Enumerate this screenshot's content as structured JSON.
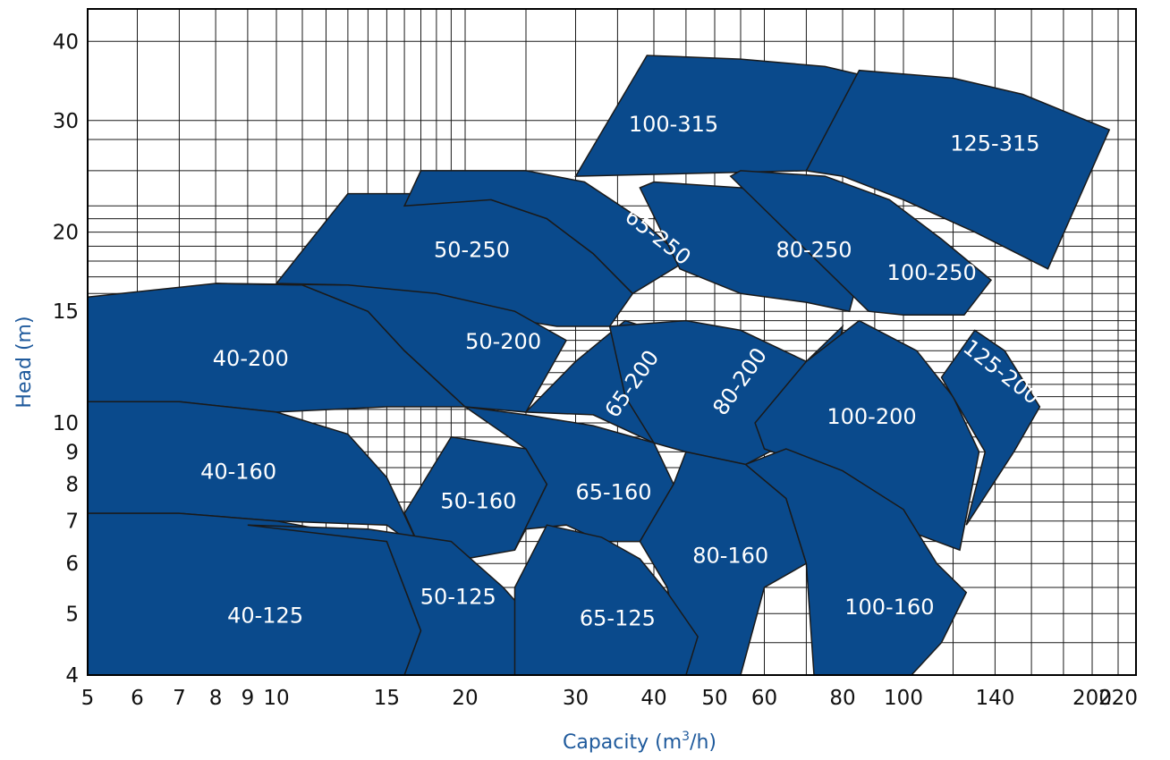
{
  "chart_data": {
    "type": "area",
    "x_scale": "log",
    "y_scale": "log",
    "xlim": [
      5,
      220
    ],
    "ylim": [
      4,
      45
    ],
    "grid": true,
    "xlabel_text": "Capacity (m",
    "xlabel_sup": "3",
    "xlabel_tail": "/h)",
    "ylabel": "Head (m)",
    "x_ticks": [
      5,
      6,
      7,
      8,
      9,
      10,
      15,
      20,
      30,
      40,
      50,
      60,
      80,
      100,
      140,
      200,
      220
    ],
    "y_ticks": [
      4,
      5,
      6,
      7,
      8,
      9,
      10,
      15,
      20,
      30,
      40
    ],
    "x_grid": [
      5,
      6,
      7,
      8,
      9,
      10,
      11,
      12,
      13,
      14,
      15,
      16,
      17,
      18,
      19,
      20,
      25,
      30,
      35,
      40,
      45,
      50,
      55,
      60,
      70,
      80,
      90,
      100,
      120,
      140,
      160,
      180,
      200,
      220
    ],
    "y_grid": [
      4,
      4.5,
      5,
      5.5,
      6,
      6.5,
      7,
      7.5,
      8,
      8.5,
      9,
      9.5,
      10,
      10.5,
      11,
      11.5,
      12,
      12.5,
      13,
      13.5,
      14,
      14.5,
      15,
      16,
      17,
      18,
      19,
      20,
      21,
      22,
      25,
      28,
      30,
      40
    ],
    "colors": {
      "region_fill": "#0a4a8c",
      "outline": "#1a1a1a",
      "label": "#ffffff",
      "axis_title": "#1f5a9c"
    },
    "regions": [
      {
        "name": "100-315",
        "label_at": [
          43,
          29.5
        ],
        "rotate": 0,
        "points": [
          [
            30,
            24.5
          ],
          [
            39,
            38
          ],
          [
            55,
            37.5
          ],
          [
            75,
            36.5
          ],
          [
            90,
            35
          ],
          [
            70,
            25
          ]
        ]
      },
      {
        "name": "125-315",
        "label_at": [
          140,
          27.5
        ],
        "rotate": 0,
        "points": [
          [
            70,
            25
          ],
          [
            85,
            36
          ],
          [
            120,
            35
          ],
          [
            155,
            33
          ],
          [
            213,
            29
          ],
          [
            170,
            17.5
          ],
          [
            130,
            20
          ],
          [
            100,
            22.5
          ],
          [
            80,
            24.5
          ]
        ]
      },
      {
        "name": "50-250",
        "label_at": [
          20.5,
          18.7
        ],
        "rotate": 0,
        "points": [
          [
            10,
            16.6
          ],
          [
            13,
            23
          ],
          [
            17,
            23
          ],
          [
            22,
            22.5
          ],
          [
            27,
            21
          ],
          [
            32,
            18.5
          ],
          [
            37,
            16
          ],
          [
            34,
            14.2
          ],
          [
            28,
            14.2
          ],
          [
            20,
            15
          ],
          [
            13,
            16.5
          ]
        ]
      },
      {
        "name": "65-250",
        "label_at": [
          40.5,
          19.6
        ],
        "rotate": 38,
        "points": [
          [
            16,
            22
          ],
          [
            17,
            25
          ],
          [
            25,
            25
          ],
          [
            31,
            24
          ],
          [
            38,
            21
          ],
          [
            45,
            18
          ],
          [
            37,
            16
          ],
          [
            32,
            18.5
          ],
          [
            27,
            21
          ],
          [
            22,
            22.5
          ]
        ]
      },
      {
        "name": "80-250",
        "label_at": [
          72,
          18.7
        ],
        "rotate": 0,
        "points": [
          [
            38,
            23.5
          ],
          [
            40,
            24
          ],
          [
            55,
            23.5
          ],
          [
            70,
            22
          ],
          [
            88,
            19.5
          ],
          [
            82,
            15
          ],
          [
            70,
            15.5
          ],
          [
            55,
            16
          ],
          [
            44,
            17.5
          ]
        ]
      },
      {
        "name": "100-250",
        "label_at": [
          111,
          17.2
        ],
        "rotate": 0,
        "points": [
          [
            53,
            24.5
          ],
          [
            55,
            25
          ],
          [
            75,
            24.5
          ],
          [
            95,
            22.5
          ],
          [
            115,
            19.5
          ],
          [
            138,
            16.8
          ],
          [
            125,
            14.8
          ],
          [
            100,
            14.8
          ],
          [
            88,
            15
          ]
        ]
      },
      {
        "name": "40-200",
        "label_at": [
          9.1,
          12.6
        ],
        "rotate": 0,
        "points": [
          [
            5,
            15.8
          ],
          [
            8,
            16.6
          ],
          [
            11,
            16.5
          ],
          [
            14,
            15
          ],
          [
            16,
            13
          ],
          [
            20,
            10.6
          ],
          [
            15,
            10.6
          ],
          [
            10,
            10.4
          ],
          [
            7,
            10.8
          ],
          [
            5,
            10.8
          ]
        ]
      },
      {
        "name": "50-200",
        "label_at": [
          23,
          13.4
        ],
        "rotate": 0,
        "points": [
          [
            8,
            16.6
          ],
          [
            13,
            16.5
          ],
          [
            18,
            16
          ],
          [
            24,
            15
          ],
          [
            29,
            13.5
          ],
          [
            25,
            10.4
          ],
          [
            20,
            10.6
          ],
          [
            16,
            13
          ],
          [
            14,
            15
          ],
          [
            11,
            16.5
          ]
        ]
      },
      {
        "name": "65-200",
        "label_at": [
          37,
          11.5
        ],
        "rotate": -55,
        "points": [
          [
            25,
            10.4
          ],
          [
            30,
            12.5
          ],
          [
            36,
            14.5
          ],
          [
            45,
            13.5
          ],
          [
            50,
            12
          ],
          [
            40,
            9.3
          ],
          [
            32,
            10.3
          ]
        ]
      },
      {
        "name": "80-200",
        "label_at": [
          55,
          11.6
        ],
        "rotate": -55,
        "points": [
          [
            34,
            14.2
          ],
          [
            45,
            14.5
          ],
          [
            55,
            14
          ],
          [
            70,
            12.5
          ],
          [
            80,
            14.2
          ],
          [
            75,
            10
          ],
          [
            56,
            8.6
          ],
          [
            45,
            9
          ],
          [
            40,
            9.3
          ],
          [
            36,
            11
          ]
        ]
      },
      {
        "name": "100-200",
        "label_at": [
          89,
          10.2
        ],
        "rotate": 0,
        "points": [
          [
            58,
            10
          ],
          [
            70,
            12.5
          ],
          [
            85,
            14.5
          ],
          [
            105,
            13
          ],
          [
            120,
            11
          ],
          [
            132,
            9
          ],
          [
            123,
            6.3
          ],
          [
            100,
            6.8
          ],
          [
            80,
            8.2
          ],
          [
            60,
            9.1
          ]
        ]
      },
      {
        "name": "125-200",
        "label_at": [
          143,
          12
        ],
        "rotate": 38,
        "points": [
          [
            115,
            11.8
          ],
          [
            130,
            14
          ],
          [
            145,
            13
          ],
          [
            165,
            10.6
          ],
          [
            150,
            9
          ],
          [
            126,
            6.9
          ],
          [
            135,
            9
          ]
        ]
      },
      {
        "name": "40-160",
        "label_at": [
          8.7,
          8.35
        ],
        "rotate": 0,
        "points": [
          [
            5,
            10.8
          ],
          [
            7,
            10.8
          ],
          [
            10,
            10.4
          ],
          [
            13,
            9.6
          ],
          [
            15,
            8.2
          ],
          [
            17,
            6.3
          ],
          [
            15,
            6.9
          ],
          [
            10,
            7
          ],
          [
            7,
            7.2
          ],
          [
            5,
            7.2
          ]
        ]
      },
      {
        "name": "50-160",
        "label_at": [
          21,
          7.5
        ],
        "rotate": 0,
        "points": [
          [
            16,
            7.2
          ],
          [
            19,
            9.5
          ],
          [
            25,
            9.1
          ],
          [
            27,
            8
          ],
          [
            24,
            6.3
          ],
          [
            20,
            6.1
          ],
          [
            17,
            6.3
          ]
        ]
      },
      {
        "name": "65-160",
        "label_at": [
          34.5,
          7.75
        ],
        "rotate": 0,
        "points": [
          [
            20,
            10.6
          ],
          [
            25,
            10.3
          ],
          [
            32,
            9.9
          ],
          [
            40,
            9.3
          ],
          [
            43,
            8
          ],
          [
            38,
            6.5
          ],
          [
            33,
            6.5
          ],
          [
            29,
            6.9
          ],
          [
            25,
            6.8
          ],
          [
            24,
            6.3
          ],
          [
            27,
            8
          ],
          [
            25,
            9.1
          ]
        ]
      },
      {
        "name": "80-160",
        "label_at": [
          53,
          6.15
        ],
        "rotate": 0,
        "points": [
          [
            43,
            8
          ],
          [
            45,
            9
          ],
          [
            56,
            8.6
          ],
          [
            65,
            7.6
          ],
          [
            70,
            6
          ],
          [
            60,
            5.5
          ],
          [
            55,
            4
          ],
          [
            45,
            4
          ],
          [
            42,
            5.5
          ],
          [
            38,
            6.5
          ]
        ]
      },
      {
        "name": "100-160",
        "label_at": [
          95,
          5.1
        ],
        "rotate": 0,
        "points": [
          [
            56,
            8.6
          ],
          [
            65,
            9.1
          ],
          [
            80,
            8.4
          ],
          [
            100,
            7.3
          ],
          [
            113,
            6
          ],
          [
            126,
            5.4
          ],
          [
            115,
            4.5
          ],
          [
            103,
            4
          ],
          [
            72,
            4
          ],
          [
            70,
            6
          ],
          [
            65,
            7.6
          ]
        ]
      },
      {
        "name": "40-125",
        "label_at": [
          9.6,
          4.95
        ],
        "rotate": 0,
        "points": [
          [
            5,
            7.2
          ],
          [
            7,
            7.2
          ],
          [
            10,
            7
          ],
          [
            15,
            6.5
          ],
          [
            17,
            4.7
          ],
          [
            16,
            4
          ],
          [
            5,
            4
          ]
        ]
      },
      {
        "name": "50-125",
        "label_at": [
          19.5,
          5.3
        ],
        "rotate": 0,
        "points": [
          [
            9,
            6.9
          ],
          [
            14,
            6.8
          ],
          [
            19,
            6.5
          ],
          [
            23,
            5.5
          ],
          [
            26,
            4.8
          ],
          [
            24,
            4
          ],
          [
            16,
            4
          ],
          [
            17,
            4.7
          ],
          [
            15,
            6.5
          ]
        ]
      },
      {
        "name": "65-125",
        "label_at": [
          35,
          4.9
        ],
        "rotate": 0,
        "points": [
          [
            24,
            5.5
          ],
          [
            27,
            6.9
          ],
          [
            33,
            6.6
          ],
          [
            38,
            6.1
          ],
          [
            42,
            5.4
          ],
          [
            47,
            4.6
          ],
          [
            45,
            4
          ],
          [
            24,
            4
          ]
        ]
      }
    ]
  }
}
